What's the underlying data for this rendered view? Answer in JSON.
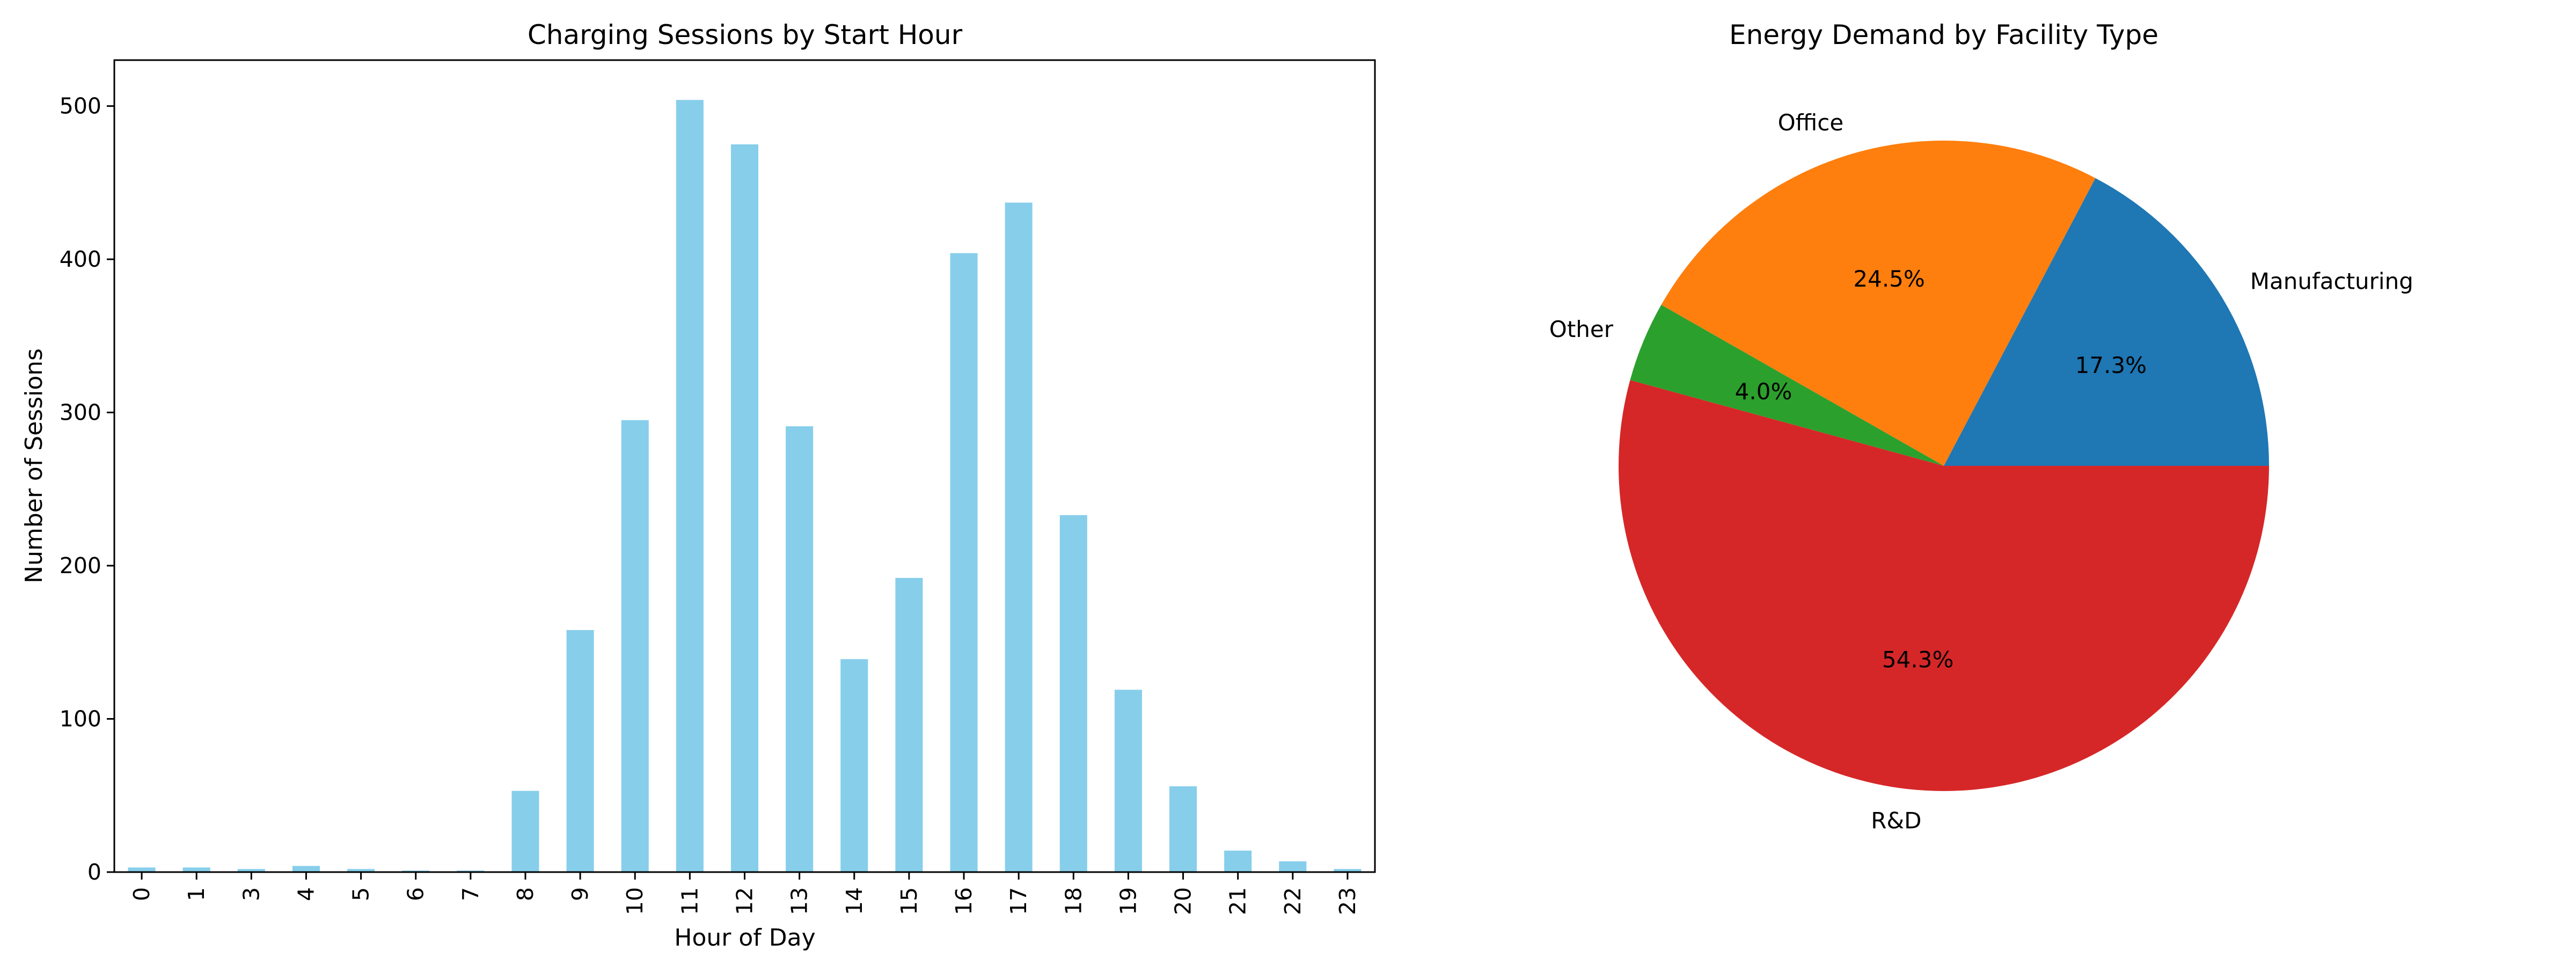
{
  "chart_data": [
    {
      "type": "bar",
      "title": "Charging Sessions by Start Hour",
      "xlabel": "Hour of Day",
      "ylabel": "Number of Sessions",
      "categories": [
        "0",
        "1",
        "3",
        "4",
        "5",
        "6",
        "7",
        "8",
        "9",
        "10",
        "11",
        "12",
        "13",
        "14",
        "15",
        "16",
        "17",
        "18",
        "19",
        "20",
        "21",
        "22",
        "23"
      ],
      "values": [
        3,
        3,
        2,
        4,
        2,
        1,
        1,
        53,
        158,
        295,
        504,
        475,
        291,
        139,
        192,
        404,
        437,
        233,
        119,
        56,
        14,
        7,
        2
      ],
      "ylim": [
        0,
        530
      ],
      "yticks": [
        0,
        100,
        200,
        300,
        400,
        500
      ],
      "bar_color": "#87CEEB",
      "grid": false,
      "legend": "none"
    },
    {
      "type": "pie",
      "title": "Energy Demand by Facility Type",
      "slices": [
        {
          "label": "Manufacturing",
          "value": 17.3,
          "pct_label": "17.3%",
          "color": "#1f77b4"
        },
        {
          "label": "Office",
          "value": 24.5,
          "pct_label": "24.5%",
          "color": "#ff7f0e"
        },
        {
          "label": "Other",
          "value": 4.0,
          "pct_label": "4.0%",
          "color": "#2ca02c"
        },
        {
          "label": "R&D",
          "value": 54.3,
          "pct_label": "54.3%",
          "color": "#d62728"
        }
      ],
      "start_angle_deg": 0,
      "direction": "counterclockwise"
    }
  ]
}
